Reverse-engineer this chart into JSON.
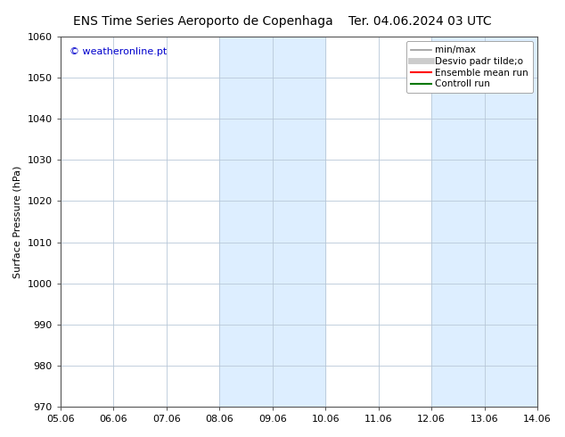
{
  "title_left": "ENS Time Series Aeroporto de Copenhaga",
  "title_right": "Ter. 04.06.2024 03 UTC",
  "ylabel": "Surface Pressure (hPa)",
  "watermark": "© weatheronline.pt",
  "watermark_color": "#0000cc",
  "ylim": [
    970,
    1060
  ],
  "yticks": [
    970,
    980,
    990,
    1000,
    1010,
    1020,
    1030,
    1040,
    1050,
    1060
  ],
  "xtick_labels": [
    "05.06",
    "06.06",
    "07.06",
    "08.06",
    "09.06",
    "10.06",
    "11.06",
    "12.06",
    "13.06",
    "14.06"
  ],
  "xtick_positions": [
    0,
    1,
    2,
    3,
    4,
    5,
    6,
    7,
    8,
    9
  ],
  "xlim": [
    0,
    9
  ],
  "shaded_bands": [
    {
      "x_start": 3,
      "x_end": 5
    },
    {
      "x_start": 7,
      "x_end": 9
    }
  ],
  "shade_color": "#ddeeff",
  "background_color": "#ffffff",
  "grid_color": "#b8c8d8",
  "legend_entries": [
    {
      "label": "min/max",
      "color": "#999999",
      "lw": 1.2,
      "style": "solid"
    },
    {
      "label": "Desvio padr tilde;o",
      "color": "#cccccc",
      "lw": 5,
      "style": "solid"
    },
    {
      "label": "Ensemble mean run",
      "color": "#ff0000",
      "lw": 1.5,
      "style": "solid"
    },
    {
      "label": "Controll run",
      "color": "#007700",
      "lw": 1.5,
      "style": "solid"
    }
  ],
  "title_fontsize": 10,
  "axis_fontsize": 8,
  "tick_fontsize": 8,
  "legend_fontsize": 7.5
}
